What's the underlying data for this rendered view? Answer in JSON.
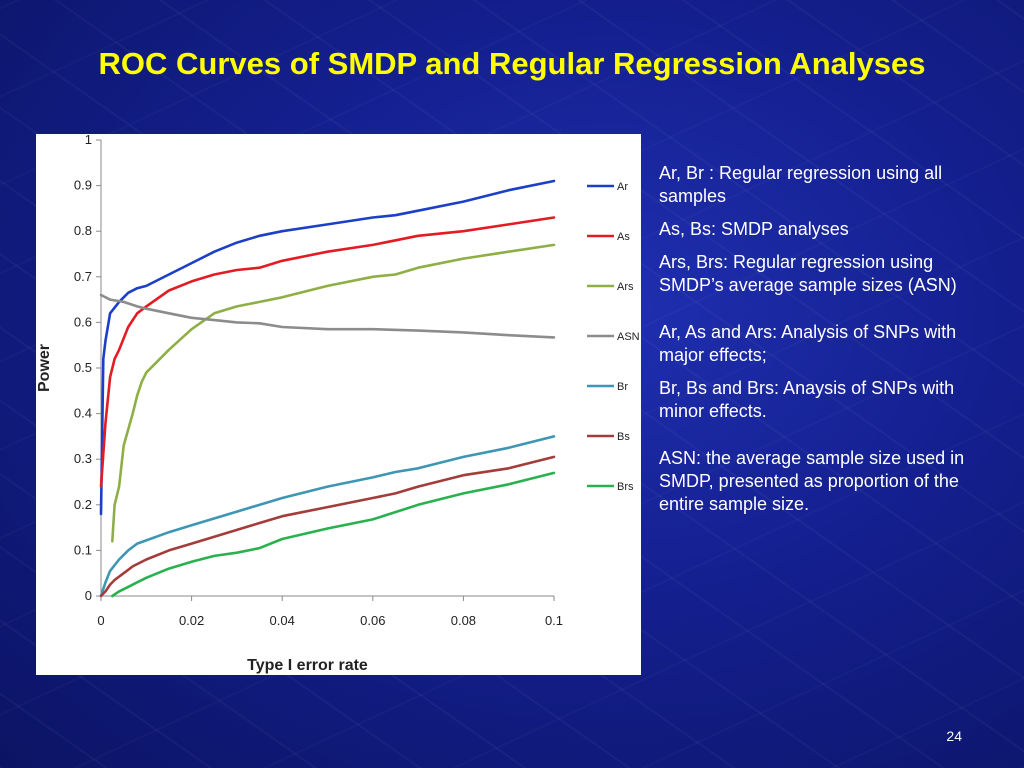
{
  "slide": {
    "title": "ROC Curves of SMDP and Regular Regression Analyses",
    "page_number": "24",
    "notes": [
      "Ar, Br :  Regular regression using all samples",
      "As, Bs:  SMDP analyses",
      "Ars, Brs: Regular regression using SMDP’s average sample sizes (ASN)",
      "Ar, As and Ars: Analysis of SNPs with major effects;",
      "Br, Bs and Brs: Anaysis of SNPs with minor effects.",
      "ASN:  the average sample size used in SMDP, presented as proportion of the entire sample size."
    ]
  },
  "colors": {
    "title": "#ffff00",
    "background": "#141f8e"
  },
  "chart_data": {
    "type": "line",
    "title": "",
    "xlabel": "Type I error rate",
    "ylabel": "Power",
    "xlim": [
      0,
      0.1
    ],
    "ylim": [
      0,
      1
    ],
    "x_ticks": [
      "0",
      "0.02",
      "0.04",
      "0.06",
      "0.08",
      "0.1"
    ],
    "y_ticks": [
      "0",
      "0.1",
      "0.2",
      "0.3",
      "0.4",
      "0.5",
      "0.6",
      "0.7",
      "0.8",
      "0.9",
      "1"
    ],
    "grid": false,
    "legend": "right",
    "series": [
      {
        "name": "Ar",
        "color": "#1c3fc8",
        "x": [
          0,
          0.0005,
          0.001,
          0.002,
          0.004,
          0.006,
          0.008,
          0.01,
          0.015,
          0.02,
          0.025,
          0.03,
          0.035,
          0.04,
          0.05,
          0.06,
          0.065,
          0.07,
          0.08,
          0.09,
          0.1
        ],
        "y": [
          0.18,
          0.52,
          0.56,
          0.62,
          0.645,
          0.665,
          0.675,
          0.68,
          0.705,
          0.73,
          0.755,
          0.775,
          0.79,
          0.8,
          0.815,
          0.83,
          0.835,
          0.845,
          0.865,
          0.89,
          0.91
        ]
      },
      {
        "name": "As",
        "color": "#e31c23",
        "x": [
          0,
          0.001,
          0.002,
          0.003,
          0.004,
          0.006,
          0.008,
          0.01,
          0.015,
          0.02,
          0.025,
          0.03,
          0.035,
          0.04,
          0.05,
          0.06,
          0.07,
          0.08,
          0.09,
          0.1
        ],
        "y": [
          0.24,
          0.38,
          0.48,
          0.52,
          0.54,
          0.59,
          0.62,
          0.635,
          0.67,
          0.69,
          0.705,
          0.715,
          0.72,
          0.735,
          0.755,
          0.77,
          0.79,
          0.8,
          0.815,
          0.83
        ]
      },
      {
        "name": "Ars",
        "color": "#8faf46",
        "x": [
          0.0025,
          0.003,
          0.004,
          0.005,
          0.007,
          0.008,
          0.009,
          0.01,
          0.015,
          0.02,
          0.025,
          0.03,
          0.035,
          0.04,
          0.05,
          0.06,
          0.065,
          0.07,
          0.08,
          0.09,
          0.1
        ],
        "y": [
          0.12,
          0.2,
          0.24,
          0.33,
          0.4,
          0.44,
          0.47,
          0.49,
          0.54,
          0.585,
          0.62,
          0.635,
          0.645,
          0.655,
          0.68,
          0.7,
          0.705,
          0.72,
          0.74,
          0.755,
          0.77
        ]
      },
      {
        "name": "ASN",
        "color": "#8c8c8c",
        "x": [
          0,
          0.002,
          0.005,
          0.008,
          0.01,
          0.015,
          0.02,
          0.025,
          0.03,
          0.035,
          0.04,
          0.05,
          0.06,
          0.07,
          0.08,
          0.09,
          0.1
        ],
        "y": [
          0.66,
          0.65,
          0.645,
          0.635,
          0.63,
          0.62,
          0.61,
          0.605,
          0.6,
          0.598,
          0.59,
          0.585,
          0.585,
          0.582,
          0.578,
          0.572,
          0.567
        ]
      },
      {
        "name": "Br",
        "color": "#3e96b4",
        "x": [
          0,
          0.001,
          0.002,
          0.004,
          0.006,
          0.008,
          0.01,
          0.015,
          0.02,
          0.03,
          0.04,
          0.05,
          0.06,
          0.065,
          0.07,
          0.08,
          0.09,
          0.1
        ],
        "y": [
          0,
          0.03,
          0.055,
          0.08,
          0.1,
          0.115,
          0.122,
          0.14,
          0.155,
          0.185,
          0.215,
          0.24,
          0.26,
          0.272,
          0.28,
          0.305,
          0.325,
          0.35
        ]
      },
      {
        "name": "Bs",
        "color": "#a33d3a",
        "x": [
          0,
          0.001,
          0.002,
          0.003,
          0.005,
          0.007,
          0.01,
          0.015,
          0.02,
          0.025,
          0.03,
          0.035,
          0.04,
          0.05,
          0.06,
          0.065,
          0.07,
          0.08,
          0.09,
          0.1
        ],
        "y": [
          0,
          0.01,
          0.025,
          0.035,
          0.05,
          0.065,
          0.08,
          0.1,
          0.115,
          0.13,
          0.145,
          0.16,
          0.175,
          0.195,
          0.215,
          0.225,
          0.24,
          0.265,
          0.28,
          0.305
        ]
      },
      {
        "name": "Brs",
        "color": "#2ab14f",
        "x": [
          0.0025,
          0.004,
          0.006,
          0.008,
          0.01,
          0.015,
          0.02,
          0.025,
          0.03,
          0.035,
          0.04,
          0.05,
          0.06,
          0.07,
          0.08,
          0.09,
          0.1
        ],
        "y": [
          0.0,
          0.01,
          0.02,
          0.03,
          0.04,
          0.06,
          0.075,
          0.088,
          0.095,
          0.105,
          0.125,
          0.148,
          0.168,
          0.2,
          0.225,
          0.245,
          0.27
        ]
      }
    ]
  }
}
